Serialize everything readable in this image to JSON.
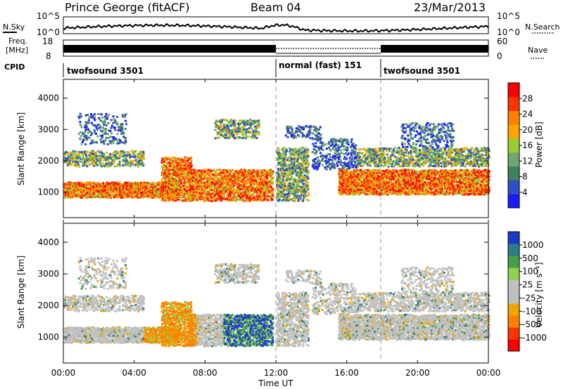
{
  "header": {
    "site": "Prince George (fitACF)",
    "beam": "Beam 04",
    "date": "23/Mar/2013"
  },
  "nsky_panel": {
    "label": "N.Sky",
    "right_label": "N.Search",
    "left_ticks": [
      "10^5",
      "10^0"
    ],
    "right_ticks": [
      "10^5",
      "10^0"
    ]
  },
  "freq_panel": {
    "label_line1": "Freq.",
    "label_line2": "[MHz]",
    "right_label": "Nave",
    "left_ticks": [
      "18",
      "8"
    ],
    "right_ticks": [
      "60",
      "0"
    ]
  },
  "cpid_panel": {
    "label": "CPID",
    "segments": [
      {
        "label": "twofsound 3501",
        "start_h": 0,
        "end_h": 12
      },
      {
        "label": "normal (fast) 151",
        "start_h": 12,
        "end_h": 18
      },
      {
        "label": "twofsound 3501",
        "start_h": 18,
        "end_h": 24
      }
    ]
  },
  "chart_data": [
    {
      "type": "heatmap",
      "title": "",
      "xlabel": "Time UT",
      "ylabel": "Slant Range [km]",
      "xticks": [
        "00:00",
        "04:00",
        "08:00",
        "12:00",
        "16:00",
        "20:00",
        "00:00"
      ],
      "yticks": [
        "1000",
        "2000",
        "3000",
        "4000"
      ],
      "xlim": [
        0,
        24
      ],
      "ylim": [
        180,
        4600
      ],
      "colorbar": {
        "label": "Power [dB]",
        "ticks": [
          "4",
          "8",
          "12",
          "16",
          "20",
          "24",
          "28"
        ],
        "range": [
          0,
          30
        ]
      }
    },
    {
      "type": "heatmap",
      "title": "",
      "xlabel": "Time UT",
      "ylabel": "Slant Range [km]",
      "xticks": [
        "00:00",
        "04:00",
        "08:00",
        "12:00",
        "16:00",
        "20:00",
        "00:00"
      ],
      "yticks": [
        "1000",
        "2000",
        "3000",
        "4000"
      ],
      "xlim": [
        0,
        24
      ],
      "ylim": [
        180,
        4600
      ],
      "colorbar": {
        "label": "Velocity [m s⁻¹]",
        "ticks": [
          "1000",
          "500",
          "100",
          "25",
          "-25",
          "-100",
          "-500",
          "-1000"
        ]
      }
    }
  ],
  "axis": {
    "xlabel": "Time UT",
    "xticks": [
      "00:00",
      "04:00",
      "08:00",
      "12:00",
      "16:00",
      "20:00",
      "00:00"
    ]
  },
  "colors": {
    "power_scale": [
      "#1a1aff",
      "#2f4fc2",
      "#3f8060",
      "#6fa66f",
      "#9acd32",
      "#ffa500",
      "#ff7f00",
      "#ff3300",
      "#ff0000"
    ],
    "velocity_scale": [
      "#1a3bc8",
      "#2e7b8a",
      "#47a047",
      "#8fd24f",
      "#c0c0c0",
      "#c0c0c0",
      "#f0a500",
      "#ff7f00",
      "#ff3300",
      "#ff0000"
    ]
  }
}
